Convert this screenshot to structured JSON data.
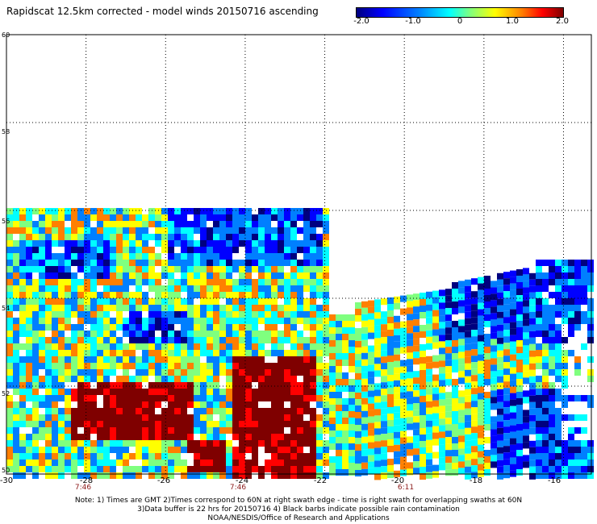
{
  "title": "Rapidscat 12.5km corrected - model winds 20150716 ascending",
  "colorbar": {
    "labels": [
      "-2.0",
      "-1.0",
      "0",
      "1.0",
      "2.0"
    ],
    "colors": [
      "#00007f",
      "#0000ff",
      "#007fff",
      "#00ffff",
      "#7fff7f",
      "#ffff00",
      "#ff7f00",
      "#ff0000",
      "#7f0000"
    ],
    "range": [
      -2.0,
      2.0
    ]
  },
  "map": {
    "lat_labels": [
      "60",
      "58",
      "56",
      "54",
      "52",
      "50"
    ],
    "lon_labels": [
      "-30",
      "-28",
      "-26",
      "-24",
      "-22",
      "-20",
      "-18",
      "-16"
    ],
    "lon_range": [
      -30,
      -15.3
    ],
    "lat_range": [
      50,
      60
    ],
    "time_labels": [
      {
        "lon": -28,
        "text": "7:46"
      },
      {
        "lon": -24,
        "text": "7:46"
      },
      {
        "lon": -20,
        "text": "6:11"
      }
    ],
    "grid": "dotted"
  },
  "notes": {
    "line1": "Note: 1) Times are GMT 2)Times correspond to 60N at right swath edge - time is right swath for overlapping swaths at 60N",
    "line2": "3)Data buffer is 22 hrs for 20150716 4) Black barbs indicate possible rain contamination",
    "line3": "NOAA/NESDIS/Office of Research and Applications"
  }
}
